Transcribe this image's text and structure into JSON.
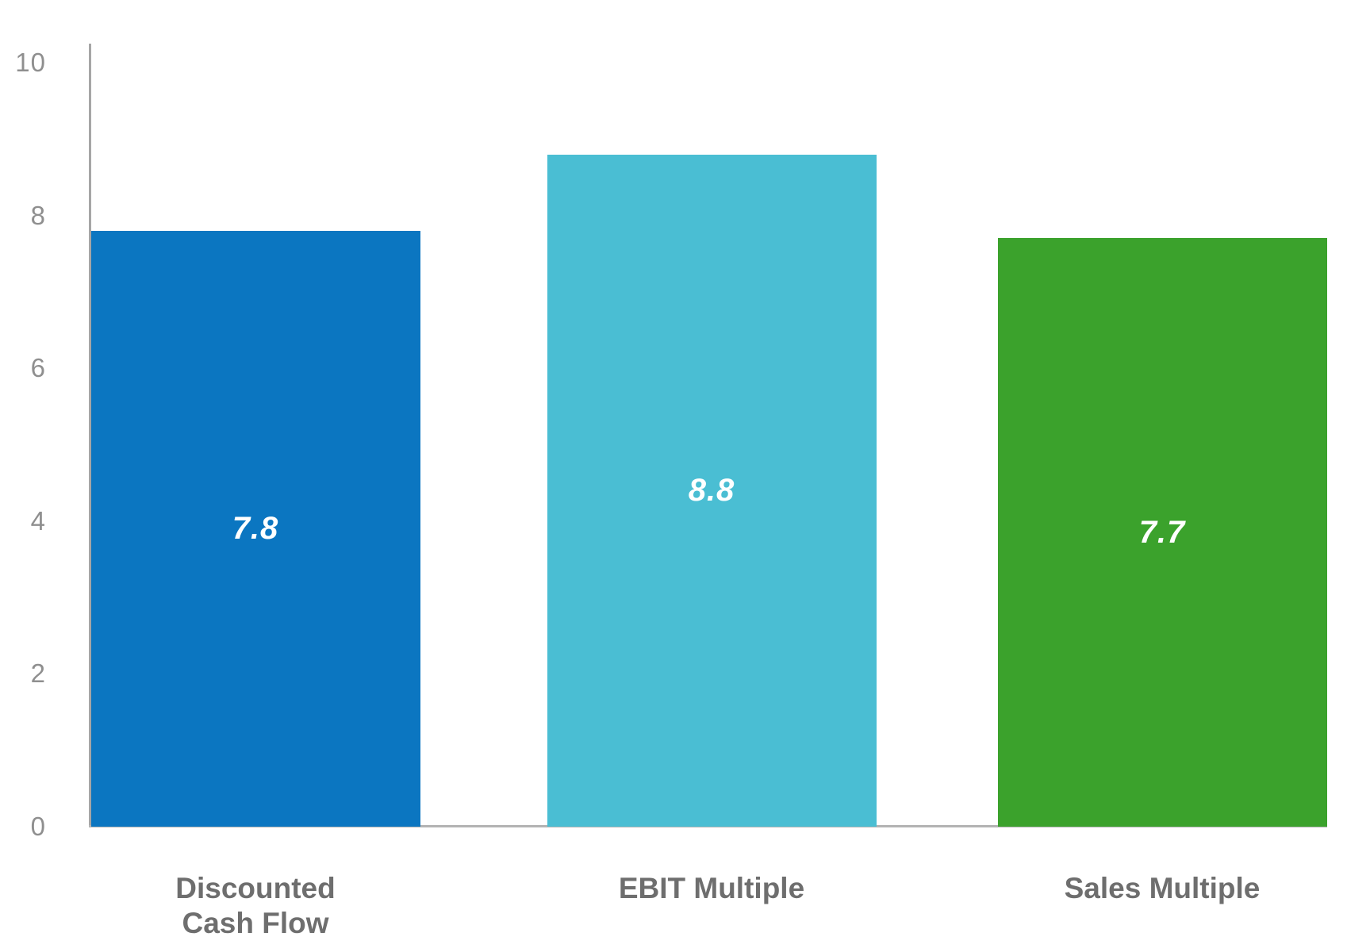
{
  "chart_data": {
    "type": "bar",
    "title": "",
    "xlabel": "",
    "ylabel": "",
    "categories": [
      "Discounted\nCash Flow",
      "EBIT Multiple",
      "Sales Multiple"
    ],
    "values": [
      7.8,
      8.8,
      7.7
    ],
    "value_labels": [
      "7.8",
      "8.8",
      "7.7"
    ],
    "bar_colors": [
      "#0b76c1",
      "#4abed3",
      "#3ba22c"
    ],
    "y_ticks": [
      0,
      2,
      4,
      6,
      8,
      10
    ],
    "ylim": [
      0,
      10
    ],
    "grid": false,
    "legend": "none",
    "colors": {
      "y_axis_line": "#a6a6a6",
      "x_axis_line": "#b3b3b3",
      "tick_label": "#8f8f8f",
      "category_label": "#6e6e6e",
      "value_label": "#ffffff",
      "background": "#ffffff"
    }
  }
}
